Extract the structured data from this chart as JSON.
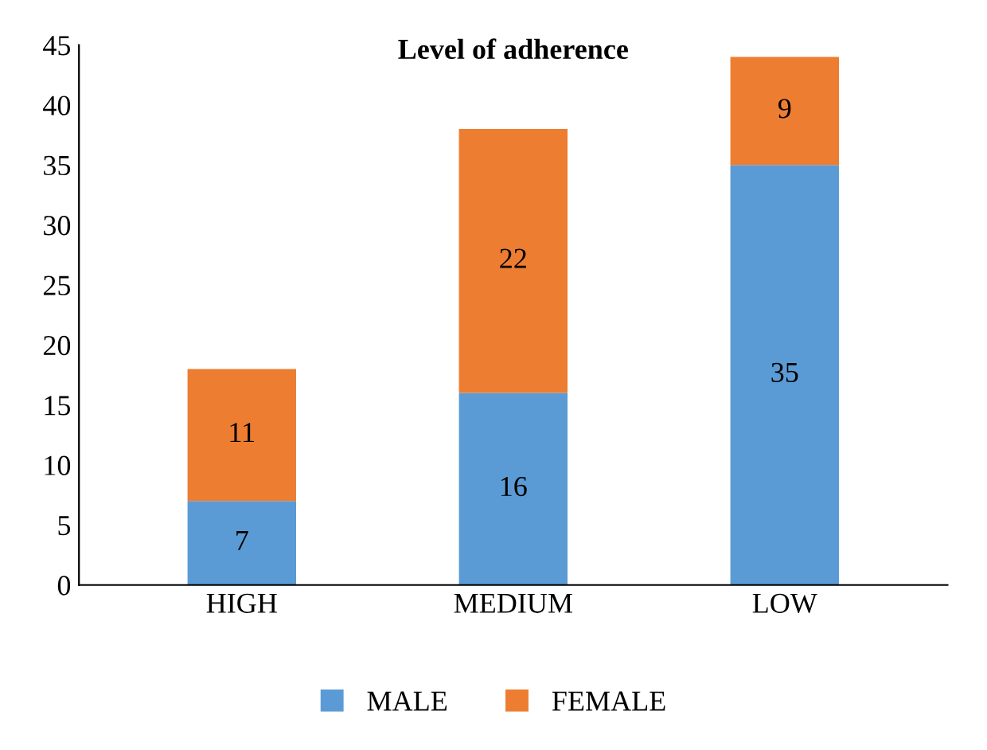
{
  "chart_data": {
    "type": "bar",
    "title": "Level of adherence",
    "categories": [
      "HIGH",
      "MEDIUM",
      "LOW"
    ],
    "stacked": true,
    "series": [
      {
        "name": "MALE",
        "color": "#5b9bd5",
        "values": [
          7,
          16,
          35
        ]
      },
      {
        "name": "FEMALE",
        "color": "#ed7d31",
        "values": [
          11,
          22,
          9
        ]
      }
    ],
    "ylim": [
      0,
      45
    ],
    "yticks": [
      0,
      5,
      10,
      15,
      20,
      25,
      30,
      35,
      40,
      45
    ],
    "data_labels": true,
    "legend": "bottom",
    "grid": false
  }
}
